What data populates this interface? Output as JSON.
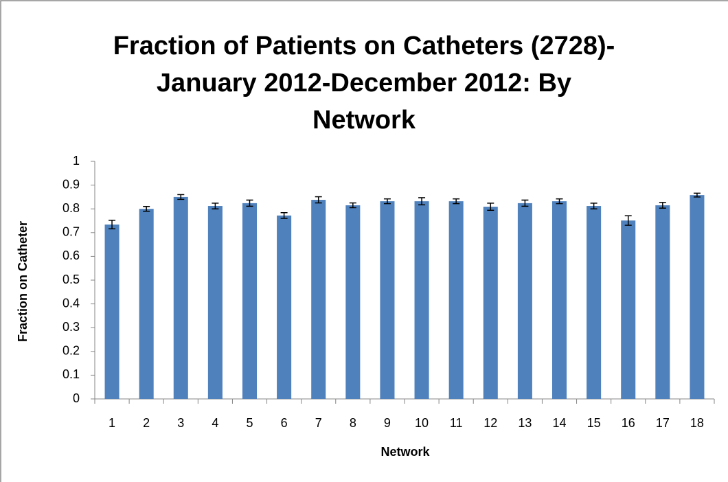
{
  "chart_data": {
    "type": "bar",
    "title": "Fraction of Patients on Catheters (2728)-\nJanuary 2012-December 2012: By\nNetwork",
    "x_label": "Network",
    "y_label": "Fraction on Catheter",
    "categories": [
      "1",
      "2",
      "3",
      "4",
      "5",
      "6",
      "7",
      "8",
      "9",
      "10",
      "11",
      "12",
      "13",
      "14",
      "15",
      "16",
      "17",
      "18"
    ],
    "values": [
      0.734,
      0.8,
      0.85,
      0.812,
      0.824,
      0.772,
      0.838,
      0.815,
      0.832,
      0.832,
      0.832,
      0.809,
      0.824,
      0.832,
      0.812,
      0.751,
      0.815,
      0.858
    ],
    "errors": [
      0.018,
      0.01,
      0.01,
      0.012,
      0.013,
      0.012,
      0.013,
      0.01,
      0.01,
      0.015,
      0.01,
      0.015,
      0.013,
      0.01,
      0.012,
      0.02,
      0.012,
      0.008
    ],
    "color": "#4f81bd",
    "ylim": [
      0,
      1
    ],
    "yticks": [
      0,
      0.1,
      0.2,
      0.3,
      0.4,
      0.5,
      0.6,
      0.7,
      0.8,
      0.9,
      1
    ],
    "grid": false
  }
}
